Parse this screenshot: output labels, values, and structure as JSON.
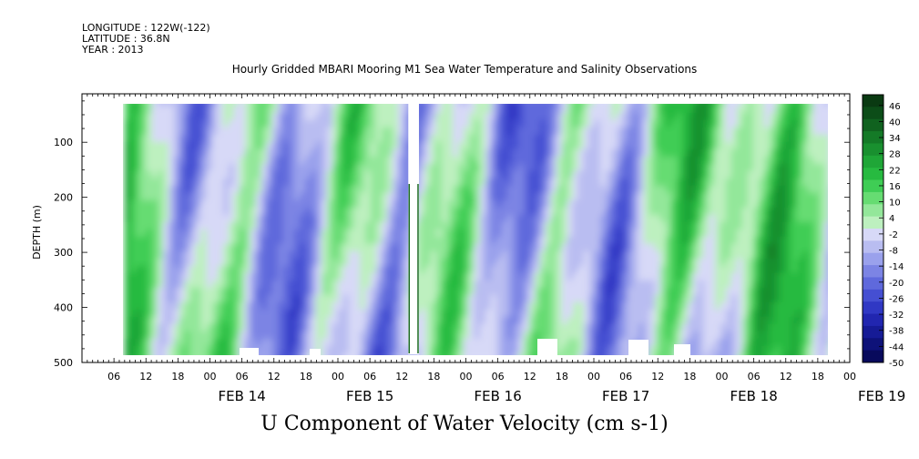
{
  "header": {
    "longitude": "LONGITUDE : 122W(-122)",
    "latitude": "LATITUDE : 36.8N",
    "year": "YEAR : 2013",
    "title": "Hourly Gridded MBARI Mooring M1 Sea Water Temperature and Salinity Observations"
  },
  "footer": {
    "variable_title": "U Component of Water Velocity (cm s-1)"
  },
  "chart_data": {
    "type": "heatmap",
    "title": "Hourly Gridded MBARI Mooring M1 Sea Water Temperature and Salinity Observations",
    "variable": "U Component of Water Velocity (cm s-1)",
    "ylabel": "DEPTH (m)",
    "ylim": [
      500,
      12
    ],
    "y_reversed": true,
    "y_ticks": [
      100,
      200,
      300,
      400,
      500
    ],
    "x_start_hour": "FEB 13 00",
    "xlim_hours": [
      0,
      144
    ],
    "hour_ticks": [
      "06",
      "12",
      "18",
      "00",
      "06",
      "12",
      "18",
      "00",
      "06",
      "12",
      "18",
      "00",
      "06",
      "12",
      "18",
      "00",
      "06",
      "12",
      "18",
      "00",
      "06",
      "12",
      "18",
      "00"
    ],
    "day_labels": [
      "FEB 14",
      "FEB 15",
      "FEB 16",
      "FEB 17",
      "FEB 18",
      "FEB 19"
    ],
    "data_start_hour": 8,
    "data_depth_range": [
      20,
      485
    ],
    "data_gap_hours": [
      61.2,
      63.2
    ],
    "colorbar": {
      "range": [
        -50,
        50
      ],
      "labels": [
        "46",
        "40",
        "34",
        "28",
        "22",
        "16",
        "10",
        "4",
        "-2",
        "-8",
        "-14",
        "-20",
        "-26",
        "-32",
        "-38",
        "-44",
        "-50"
      ],
      "colors": [
        "#0a3a12",
        "#0c4d18",
        "#10621f",
        "#147a27",
        "#19902f",
        "#1fa637",
        "#27ba40",
        "#3fcd55",
        "#66dc72",
        "#93e79a",
        "#bdf0bf",
        "#d7d9f7",
        "#b9bdf1",
        "#9aa1ec",
        "#7c84e4",
        "#5f69dc",
        "#454fd2",
        "#3038c4",
        "#2126b0",
        "#161b96",
        "#0e1279",
        "#080a5c"
      ]
    },
    "grid": false,
    "legend_position": "right"
  }
}
